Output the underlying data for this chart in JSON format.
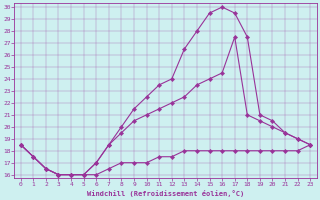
{
  "xlabel": "Windchill (Refroidissement éolien,°C)",
  "background_color": "#cef0f0",
  "line_color": "#993399",
  "xlim": [
    -0.5,
    23.5
  ],
  "ylim": [
    15.7,
    30.3
  ],
  "xticks": [
    0,
    1,
    2,
    3,
    4,
    5,
    6,
    7,
    8,
    9,
    10,
    11,
    12,
    13,
    14,
    15,
    16,
    17,
    18,
    19,
    20,
    21,
    22,
    23
  ],
  "yticks": [
    16,
    17,
    18,
    19,
    20,
    21,
    22,
    23,
    24,
    25,
    26,
    27,
    28,
    29,
    30
  ],
  "series1_x": [
    0,
    1,
    2,
    3,
    4,
    5,
    6,
    7,
    8,
    9,
    10,
    11,
    12,
    13,
    14,
    15,
    16,
    17,
    18,
    19,
    20,
    21,
    22,
    23
  ],
  "series1_y": [
    18.5,
    17.5,
    16.5,
    16.0,
    16.0,
    16.0,
    16.0,
    16.5,
    17.0,
    17.0,
    17.0,
    17.5,
    17.5,
    18.0,
    18.0,
    18.0,
    18.0,
    18.0,
    18.0,
    18.0,
    18.0,
    18.0,
    18.0,
    18.5
  ],
  "series2_x": [
    0,
    1,
    2,
    3,
    4,
    5,
    6,
    7,
    8,
    9,
    10,
    11,
    12,
    13,
    14,
    15,
    16,
    17,
    18,
    19,
    20,
    21,
    22,
    23
  ],
  "series2_y": [
    18.5,
    17.5,
    16.5,
    16.0,
    16.0,
    16.0,
    17.0,
    18.5,
    20.0,
    21.5,
    22.5,
    23.5,
    24.0,
    26.5,
    28.0,
    29.5,
    30.0,
    29.5,
    27.5,
    21.0,
    20.5,
    19.5,
    19.0,
    18.5
  ],
  "series3_x": [
    0,
    1,
    2,
    3,
    4,
    5,
    6,
    7,
    8,
    9,
    10,
    11,
    12,
    13,
    14,
    15,
    16,
    17,
    18,
    19,
    20,
    21,
    22,
    23
  ],
  "series3_y": [
    18.5,
    17.5,
    16.5,
    16.0,
    16.0,
    16.0,
    17.0,
    18.5,
    19.5,
    20.5,
    21.0,
    21.5,
    22.0,
    22.5,
    23.5,
    24.0,
    24.5,
    27.5,
    21.0,
    20.5,
    20.0,
    19.5,
    19.0,
    18.5
  ]
}
